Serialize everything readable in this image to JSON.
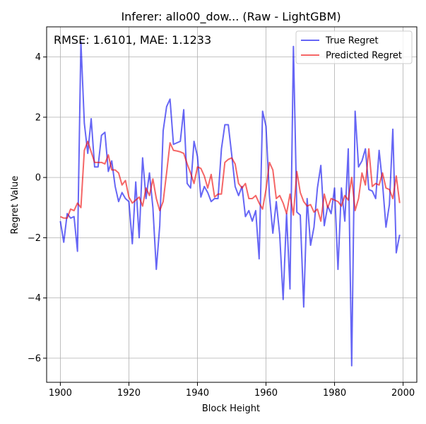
{
  "chart_data": {
    "type": "line",
    "title": "Inferer: allo00_dow... (Raw - LightGBM)",
    "xlabel": "Block Height",
    "ylabel": "Regret Value",
    "annotation": "RMSE: 1.6101, MAE: 1.1233",
    "xlim": [
      1896,
      2004
    ],
    "ylim": [
      -6.8,
      5.0
    ],
    "xticks": [
      1900,
      1920,
      1940,
      1960,
      1980,
      2000
    ],
    "yticks": [
      -6,
      -4,
      -2,
      0,
      2,
      4
    ],
    "grid": true,
    "legend_position": "top-right",
    "x": [
      1900,
      1901,
      1902,
      1903,
      1904,
      1905,
      1906,
      1907,
      1908,
      1909,
      1910,
      1911,
      1912,
      1913,
      1914,
      1915,
      1916,
      1917,
      1918,
      1919,
      1920,
      1921,
      1922,
      1923,
      1924,
      1925,
      1926,
      1927,
      1928,
      1929,
      1930,
      1931,
      1932,
      1933,
      1934,
      1935,
      1936,
      1937,
      1938,
      1939,
      1940,
      1941,
      1942,
      1943,
      1944,
      1945,
      1946,
      1947,
      1948,
      1949,
      1950,
      1951,
      1952,
      1953,
      1954,
      1955,
      1956,
      1957,
      1958,
      1959,
      1960,
      1961,
      1962,
      1963,
      1964,
      1965,
      1966,
      1967,
      1968,
      1969,
      1970,
      1971,
      1972,
      1973,
      1974,
      1975,
      1976,
      1977,
      1978,
      1979,
      1980,
      1981,
      1982,
      1983,
      1984,
      1985,
      1986,
      1987,
      1988,
      1989,
      1990,
      1991,
      1992,
      1993,
      1994,
      1995,
      1996,
      1997,
      1998,
      1999
    ],
    "series": [
      {
        "name": "True Regret",
        "color": "#0000ee",
        "values": [
          -1.45,
          -2.15,
          -1.2,
          -1.35,
          -1.3,
          -2.45,
          4.5,
          1.8,
          0.8,
          1.95,
          0.35,
          0.35,
          1.4,
          1.5,
          0.2,
          0.55,
          -0.3,
          -0.8,
          -0.5,
          -0.7,
          -0.8,
          -2.2,
          -0.15,
          -2.0,
          0.65,
          -0.7,
          0.15,
          -1.0,
          -3.05,
          -1.6,
          1.55,
          2.35,
          2.6,
          1.1,
          1.15,
          1.2,
          2.25,
          -0.2,
          -0.35,
          1.2,
          0.7,
          -0.65,
          -0.3,
          -0.5,
          -0.8,
          -0.7,
          -0.7,
          0.95,
          1.75,
          1.75,
          0.75,
          -0.3,
          -0.6,
          -0.3,
          -1.3,
          -1.1,
          -1.45,
          -1.1,
          -2.7,
          2.2,
          1.7,
          -0.6,
          -1.85,
          -0.8,
          -1.9,
          -4.05,
          -1.2,
          -3.7,
          4.35,
          -1.15,
          -1.25,
          -4.3,
          -0.7,
          -2.25,
          -1.65,
          -0.35,
          0.4,
          -1.6,
          -0.95,
          -1.2,
          -0.35,
          -3.05,
          -0.35,
          -1.45,
          0.95,
          -6.25,
          2.2,
          0.35,
          0.55,
          0.95,
          -0.4,
          -0.45,
          -0.7,
          0.9,
          -0.2,
          -1.65,
          -0.9,
          1.6,
          -2.5,
          -1.9
        ]
      },
      {
        "name": "Predicted Regret",
        "color": "#ee0000",
        "values": [
          -1.3,
          -1.35,
          -1.35,
          -1.05,
          -1.1,
          -0.85,
          -1.0,
          0.9,
          1.2,
          0.85,
          0.5,
          0.5,
          0.5,
          0.45,
          0.75,
          0.25,
          0.25,
          0.15,
          -0.25,
          -0.1,
          -0.65,
          -0.85,
          -0.75,
          -0.65,
          -0.95,
          -0.35,
          -0.6,
          -0.05,
          -0.7,
          -1.1,
          -0.8,
          0.15,
          1.15,
          0.9,
          0.88,
          0.85,
          0.8,
          0.45,
          0.15,
          -0.2,
          0.35,
          0.3,
          0.05,
          -0.35,
          0.1,
          -0.65,
          -0.55,
          -0.55,
          0.5,
          0.6,
          0.65,
          0.45,
          -0.2,
          -0.35,
          -0.2,
          -0.7,
          -0.7,
          -0.6,
          -0.85,
          -1.05,
          -0.4,
          0.5,
          0.25,
          -0.7,
          -0.6,
          -0.85,
          -1.2,
          -0.55,
          -1.25,
          0.2,
          -0.5,
          -0.8,
          -0.95,
          -0.9,
          -1.15,
          -1.05,
          -1.45,
          -0.55,
          -1.0,
          -0.7,
          -0.75,
          -0.8,
          -0.95,
          -0.6,
          -0.75,
          0.0,
          -1.1,
          -0.7,
          0.15,
          -0.25,
          0.95,
          -0.3,
          -0.2,
          -0.25,
          0.15,
          -0.35,
          -0.4,
          -0.7,
          0.05,
          -0.85
        ]
      }
    ]
  }
}
